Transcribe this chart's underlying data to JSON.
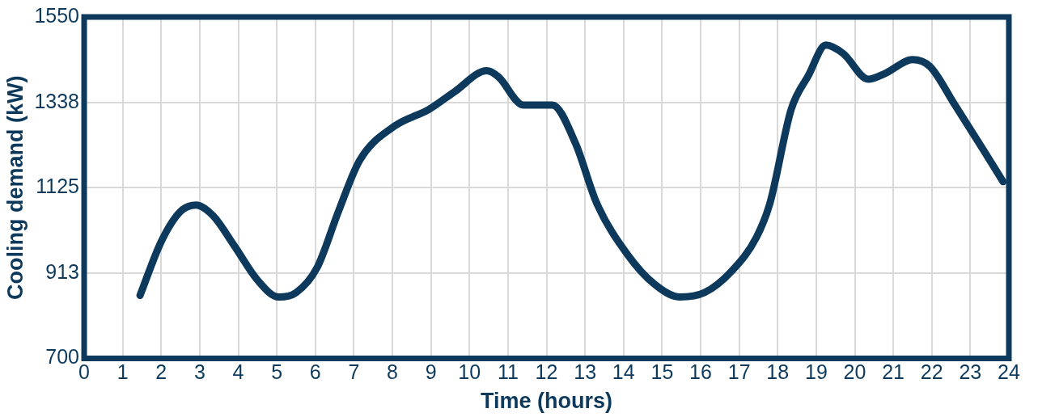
{
  "chart_data": {
    "type": "line",
    "xlabel": "Time (hours)",
    "ylabel": "Cooling demand (kW)",
    "xlim": [
      0,
      24
    ],
    "xticks": [
      0,
      1,
      2,
      3,
      4,
      5,
      6,
      7,
      8,
      9,
      10,
      11,
      12,
      13,
      14,
      15,
      16,
      17,
      18,
      19,
      20,
      21,
      22,
      23,
      24
    ],
    "ylim": [
      700,
      1550
    ],
    "yticks": [
      700,
      {
        "value": 912.5,
        "label": "913"
      },
      1125,
      {
        "value": 1337.5,
        "label": "1338"
      },
      1550
    ],
    "grid": true,
    "legend": false,
    "marker": "none",
    "line_style": "solid",
    "series": [
      {
        "color": "#0d3a5c",
        "x": [
          1.45,
          2.0,
          2.5,
          2.9,
          3.35,
          3.9,
          4.5,
          5.05,
          5.5,
          6.05,
          6.6,
          7.15,
          8.05,
          8.95,
          9.6,
          10.45,
          10.75,
          11.4,
          12.15,
          12.75,
          13.3,
          14.1,
          14.8,
          15.45,
          16.1,
          16.8,
          17.45,
          17.8,
          18.35,
          18.8,
          19.25,
          19.7,
          20.35,
          20.8,
          21.5,
          21.95,
          22.6,
          23.3,
          23.85
        ],
        "values": [
          857,
          991,
          1066,
          1082,
          1055,
          980,
          895,
          853,
          864,
          927,
          1066,
          1193,
          1278,
          1320,
          1363,
          1416,
          1401,
          1331,
          1331,
          1236,
          1087,
          959,
          885,
          853,
          864,
          917,
          1002,
          1087,
          1320,
          1405,
          1480,
          1459,
          1395,
          1410,
          1444,
          1427,
          1331,
          1225,
          1140
        ]
      }
    ]
  }
}
